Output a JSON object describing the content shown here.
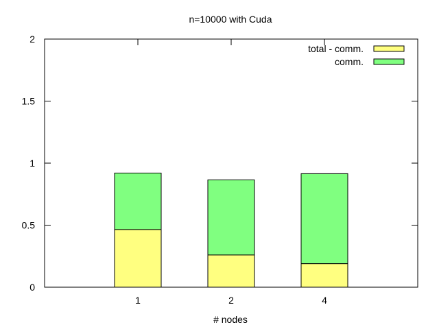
{
  "chart_data": {
    "type": "bar",
    "stacked": true,
    "title": "n=10000 with Cuda",
    "xlabel": "# nodes",
    "ylabel": "",
    "categories": [
      "1",
      "2",
      "4"
    ],
    "ylim": [
      0,
      2
    ],
    "yticks": [
      "0",
      "0.5",
      "1",
      "1.5",
      "2"
    ],
    "grid": false,
    "legend_position": "top-right",
    "series": [
      {
        "name": "total - comm.",
        "values": [
          0.465,
          0.26,
          0.19
        ],
        "color": "#ffff80"
      },
      {
        "name": "comm.",
        "values": [
          0.455,
          0.605,
          0.725
        ],
        "color": "#80ff80"
      }
    ]
  }
}
